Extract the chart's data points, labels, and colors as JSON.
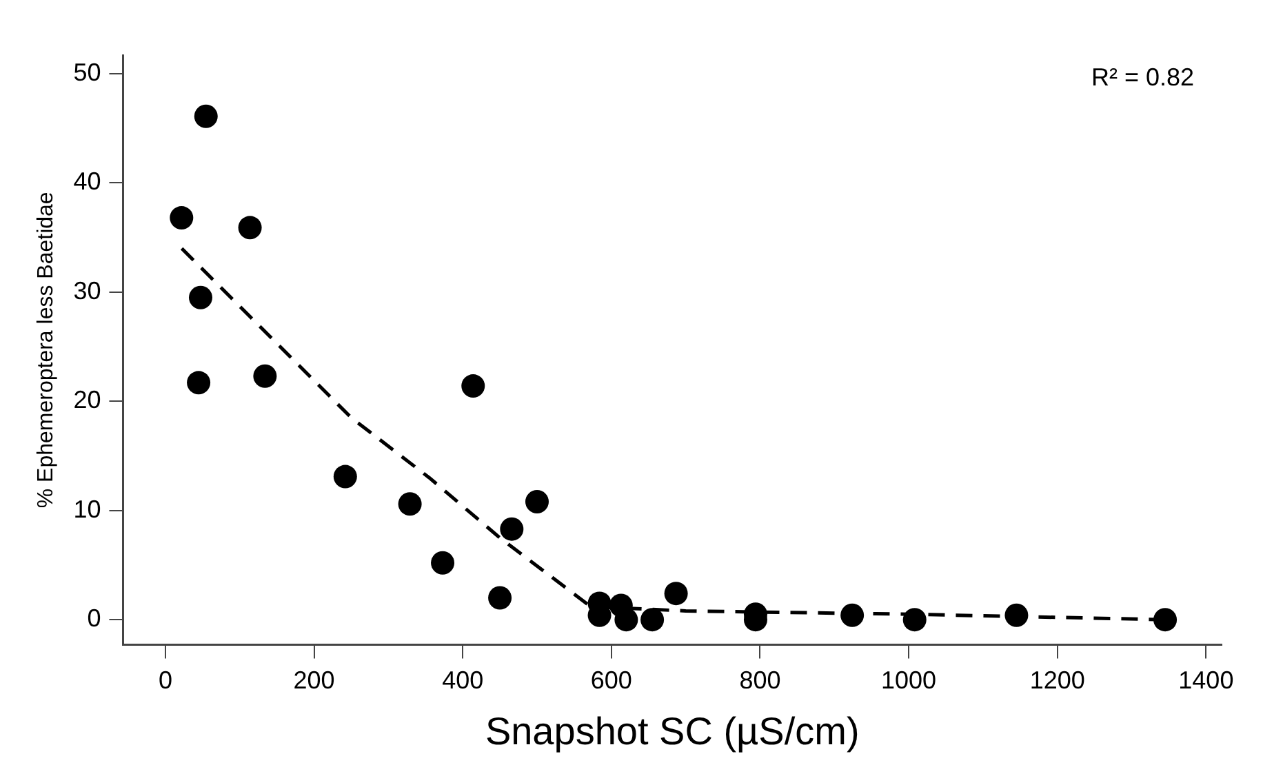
{
  "chart_data": {
    "type": "scatter",
    "xlabel": "Snapshot SC (µS/cm)",
    "ylabel": "% Ephemeroptera less Baetidae",
    "annotations": [
      "R² = 0.82"
    ],
    "series": [
      {
        "type": "scatter",
        "color": "#000000",
        "marker": "circle",
        "x": [
          21.7,
          54.6,
          113.8,
          47.4,
          44.7,
          134,
          242,
          329,
          373,
          414,
          450,
          466,
          500,
          584,
          584,
          613,
          620,
          655,
          687,
          794,
          794,
          924,
          1008,
          1145,
          1345
        ],
        "values": [
          36.8,
          46.1,
          35.9,
          29.5,
          21.7,
          22.3,
          13.1,
          10.6,
          5.2,
          21.4,
          2.0,
          8.3,
          10.8,
          1.5,
          0.4,
          1.3,
          0,
          0,
          2.4,
          0.5,
          0,
          0.4,
          0,
          0.4,
          0
        ]
      },
      {
        "type": "line",
        "color": "#000000",
        "marker": "none",
        "line_style": "dashed",
        "x": [
          22,
          250,
          355,
          450,
          572,
          700,
          1000,
          1345
        ],
        "values": [
          34,
          18.5,
          13,
          7.5,
          1.2,
          0.8,
          0.5,
          0
        ]
      }
    ],
    "xlim": [
      -57,
      1421
    ],
    "xticks": [
      0,
      200,
      400,
      600,
      800,
      1000,
      1200,
      1400
    ],
    "ylim": [
      -2.3,
      51.7
    ],
    "yticks": [
      0,
      10,
      20,
      30,
      40,
      50
    ],
    "grid": false,
    "legend": false
  }
}
